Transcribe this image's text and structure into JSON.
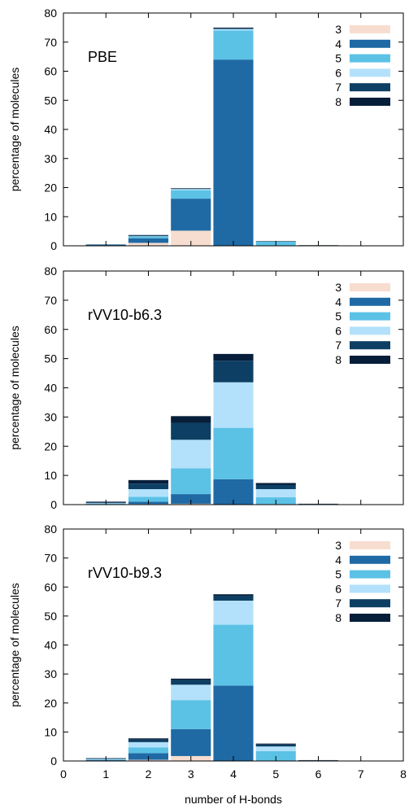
{
  "chart_data": [
    {
      "type": "bar",
      "stacked": true,
      "title": "PBE",
      "xlabel": "",
      "ylabel": "percentage of molecules",
      "xlim": [
        0,
        8
      ],
      "ylim": [
        0,
        80
      ],
      "categories": [
        "1",
        "2",
        "3",
        "4",
        "5",
        "6"
      ],
      "legend_position": "top-right",
      "series": [
        {
          "name": "3",
          "color": "#f7ddd0",
          "values": [
            0.1,
            1.0,
            5.2,
            0.0,
            0.0,
            0.0
          ]
        },
        {
          "name": "4",
          "color": "#1f6aa5",
          "values": [
            0.2,
            1.6,
            11.0,
            64.0,
            0.0,
            0.0
          ]
        },
        {
          "name": "5",
          "color": "#5bc2e6",
          "values": [
            0.1,
            0.6,
            2.9,
            10.0,
            1.4,
            0.0
          ]
        },
        {
          "name": "6",
          "color": "#b3e1fb",
          "values": [
            0.0,
            0.1,
            0.4,
            0.5,
            0.0,
            0.0
          ]
        },
        {
          "name": "7",
          "color": "#0d3f64",
          "values": [
            0.0,
            0.3,
            0.2,
            0.3,
            0.1,
            0.1
          ]
        },
        {
          "name": "8",
          "color": "#061e3a",
          "values": [
            0.1,
            0.1,
            0.1,
            0.2,
            0.1,
            0.1
          ]
        }
      ]
    },
    {
      "type": "bar",
      "stacked": true,
      "title": "rVV10-b6.3",
      "xlabel": "",
      "ylabel": "percentage of molecules",
      "xlim": [
        0,
        8
      ],
      "ylim": [
        0,
        80
      ],
      "categories": [
        "1",
        "2",
        "3",
        "4",
        "5",
        "6"
      ],
      "legend_position": "top-right",
      "series": [
        {
          "name": "3",
          "color": "#f7ddd0",
          "values": [
            0.0,
            0.2,
            0.3,
            0.0,
            0.0,
            0.0
          ]
        },
        {
          "name": "4",
          "color": "#1f6aa5",
          "values": [
            0.1,
            0.8,
            3.3,
            8.7,
            0.2,
            0.0
          ]
        },
        {
          "name": "5",
          "color": "#5bc2e6",
          "values": [
            0.2,
            1.7,
            8.8,
            17.6,
            2.3,
            0.0
          ]
        },
        {
          "name": "6",
          "color": "#b3e1fb",
          "values": [
            0.2,
            2.6,
            9.8,
            15.6,
            2.8,
            0.1
          ]
        },
        {
          "name": "7",
          "color": "#0d3f64",
          "values": [
            0.3,
            1.9,
            5.8,
            7.4,
            1.4,
            0.1
          ]
        },
        {
          "name": "8",
          "color": "#061e3a",
          "values": [
            0.2,
            1.2,
            2.3,
            2.3,
            0.7,
            0.1
          ]
        }
      ]
    },
    {
      "type": "bar",
      "stacked": true,
      "title": "rVV10-b9.3",
      "xlabel": "number of H-bonds",
      "ylabel": "percentage of molecules",
      "xlim": [
        0,
        8
      ],
      "ylim": [
        0,
        80
      ],
      "categories": [
        "1",
        "2",
        "3",
        "4",
        "5",
        "6"
      ],
      "legend_position": "top-right",
      "series": [
        {
          "name": "3",
          "color": "#f7ddd0",
          "values": [
            0.0,
            0.4,
            1.7,
            0.0,
            0.0,
            0.0
          ]
        },
        {
          "name": "4",
          "color": "#1f6aa5",
          "values": [
            0.3,
            2.3,
            9.3,
            26.0,
            0.1,
            0.0
          ]
        },
        {
          "name": "5",
          "color": "#5bc2e6",
          "values": [
            0.2,
            2.0,
            10.0,
            21.0,
            3.3,
            0.0
          ]
        },
        {
          "name": "6",
          "color": "#b3e1fb",
          "values": [
            0.2,
            1.8,
            5.3,
            8.3,
            1.6,
            0.1
          ]
        },
        {
          "name": "7",
          "color": "#0d3f64",
          "values": [
            0.2,
            0.9,
            1.6,
            1.7,
            0.7,
            0.1
          ]
        },
        {
          "name": "8",
          "color": "#061e3a",
          "values": [
            0.1,
            0.4,
            0.5,
            0.5,
            0.3,
            0.1
          ]
        }
      ]
    }
  ]
}
